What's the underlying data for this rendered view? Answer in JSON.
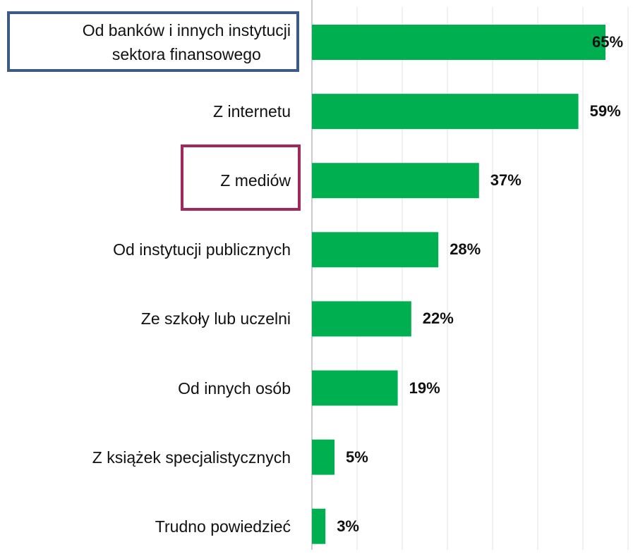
{
  "chart_data": {
    "type": "barh",
    "categories": [
      "Od banków i innych instytucji\nsektora finansowego",
      "Z internetu",
      "Z mediów",
      "Od instytucji publicznych",
      "Ze szkoły lub uczelni",
      "Od innych osób",
      "Z książek specjalistycznych",
      "Trudno powiedzieć"
    ],
    "values": [
      65,
      59,
      37,
      28,
      22,
      19,
      5,
      3
    ],
    "value_labels": [
      "65%",
      "59%",
      "37%",
      "28%",
      "22%",
      "19%",
      "5%",
      "3%"
    ],
    "color": "#00b050",
    "xlim": [
      0,
      70
    ],
    "xticks": [
      0,
      10,
      20,
      30,
      40,
      50,
      60,
      70
    ],
    "grid": true
  }
}
